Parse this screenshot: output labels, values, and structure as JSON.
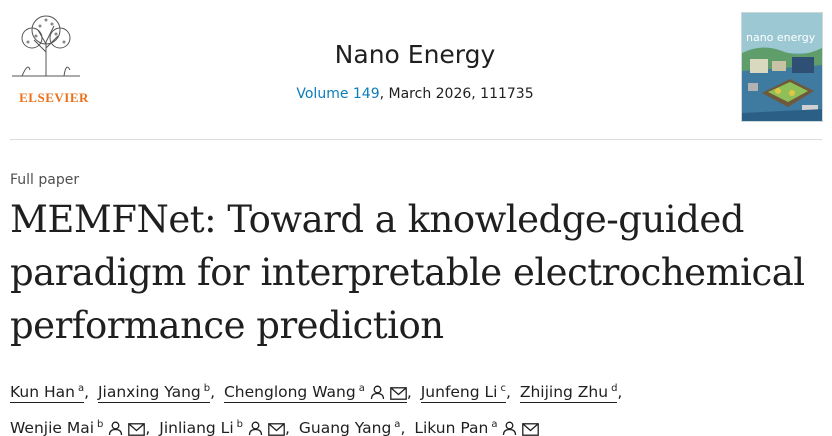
{
  "publisher": {
    "name": "ELSEVIER",
    "logo_icon": "elsevier-tree-logo-icon"
  },
  "journal": {
    "title": "Nano Energy",
    "volume_link": "Volume 149",
    "citation_rest": ", March 2026, 111735"
  },
  "cover": {
    "title": "nano energy",
    "image_icon": "journal-cover-image"
  },
  "article": {
    "type": "Full paper",
    "title_lines": [
      "MEMFNet: Toward a knowledge-guided",
      "paradigm for interpretable electrochemical",
      "performance prediction"
    ]
  },
  "authors": [
    {
      "name": "Kun Han",
      "aff": "a",
      "person": false,
      "email": false
    },
    {
      "name": "Jianxing Yang",
      "aff": "b",
      "person": false,
      "email": false
    },
    {
      "name": "Chenglong Wang",
      "aff": "a",
      "person": true,
      "email": true
    },
    {
      "name": "Junfeng Li",
      "aff": "c",
      "person": false,
      "email": false
    },
    {
      "name": "Zhijing Zhu",
      "aff": "d",
      "person": false,
      "email": false
    },
    {
      "name": "Wenjie Mai",
      "aff": "b",
      "person": true,
      "email": true
    },
    {
      "name": "Jinliang Li",
      "aff": "b",
      "person": true,
      "email": true
    },
    {
      "name": "Guang Yang",
      "aff": "a",
      "person": false,
      "email": false
    },
    {
      "name": "Likun Pan",
      "aff": "a",
      "person": true,
      "email": true
    }
  ],
  "colors": {
    "link": "#0c7dbb",
    "publisher": "#e9711c",
    "text": "#1f1f1f"
  }
}
